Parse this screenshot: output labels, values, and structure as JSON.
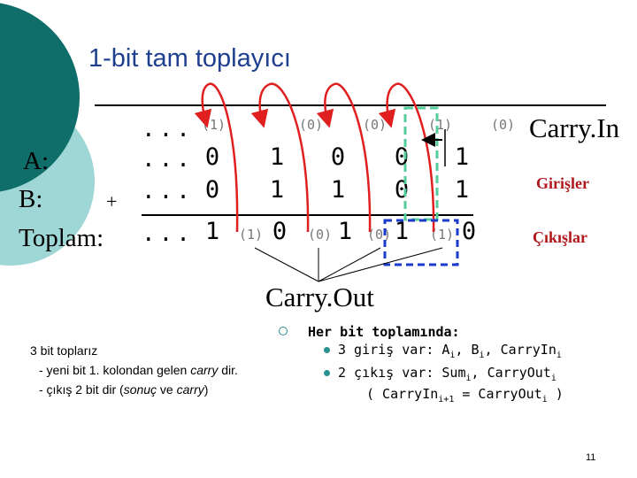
{
  "slide": {
    "title": "1-bit tam toplayıcı",
    "page_number": "11"
  },
  "rows": {
    "a_label": "A:",
    "b_label": "B:",
    "sum_label": "Toplam:",
    "plus": "+",
    "dots": "...",
    "carry_in_digits": [
      "(1)",
      "(0)",
      "(0)",
      "(1)",
      "(0)"
    ],
    "a_digits": [
      "0",
      "1",
      "0",
      "0",
      "1"
    ],
    "b_digits": [
      "0",
      "1",
      "1",
      "0",
      "1"
    ],
    "sum_digits": [
      "1",
      "0",
      "1",
      "1",
      "0"
    ],
    "carry_out_digits": [
      "(1)",
      "(0)",
      "(0)",
      "(1)"
    ]
  },
  "side_labels": {
    "carry_in": "Carry.In",
    "inputs": "Girişler",
    "outputs": "Çıkışlar",
    "carry_out": "Carry.Out"
  },
  "left_notes": {
    "line1": "3 bit toplarız",
    "line2_prefix": "- yeni bit 1. kolondan gelen ",
    "line2_em": "carry",
    "line2_suffix": " dir.",
    "line3_prefix": "- çıkış 2 bit dir (",
    "line3_em": "sonuç",
    "line3_mid": " ve ",
    "line3_em2": "carry",
    "line3_suffix": ")"
  },
  "right_notes": {
    "heading": "Her bit toplamında:",
    "item1_prefix": "3 giriş var: A",
    "item1_sub1": "i",
    "item1_mid1": ", B",
    "item1_sub2": "i",
    "item1_mid2": ", CarryIn",
    "item1_sub3": "i",
    "item2_prefix": "2 çıkış var: Sum",
    "item2_sub1": "i",
    "item2_mid": ", CarryOut",
    "item2_sub2": "i",
    "item3_prefix": "( CarryIn",
    "item3_sub1": "i+1",
    "item3_mid": " = CarryOut",
    "item3_sub2": "i",
    "item3_suffix": " )"
  },
  "colors": {
    "title": "#1f3f8f",
    "arrows": "#e02020",
    "green_box": "#55cc99",
    "blue_box": "#1a3acc",
    "side_labels": "#b0181c",
    "circle_dark": "#0f6d6a",
    "circle_light": "#9fd6d6"
  }
}
